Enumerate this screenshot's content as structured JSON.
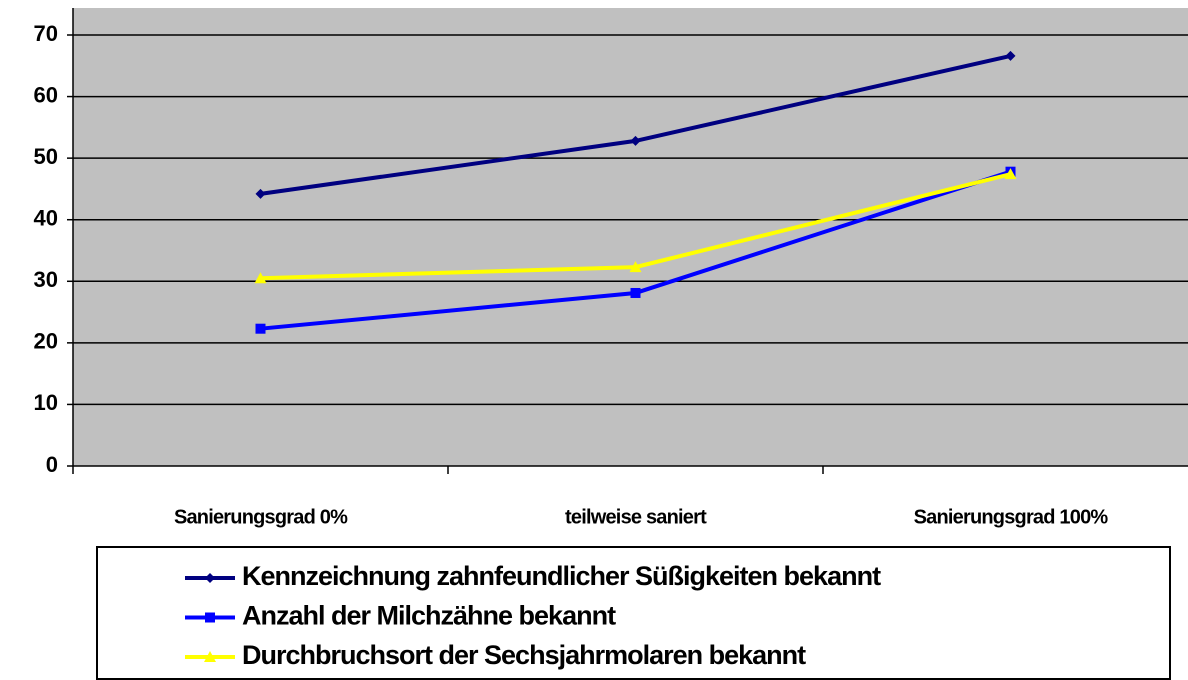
{
  "chart_data": {
    "type": "line",
    "categories": [
      "Sanierungsgrad 0%",
      "teilweise saniert",
      "Sanierungsgrad 100%"
    ],
    "series": [
      {
        "name": "Kennzeichnung zahnfeundlicher Süßigkeiten bekannt",
        "color": "#000080",
        "marker": "diamond",
        "values": [
          44.2,
          52.8,
          66.6
        ]
      },
      {
        "name": "Anzahl der Milchzähne bekannt",
        "color": "#0000ff",
        "marker": "square",
        "values": [
          22.3,
          28.1,
          47.8
        ]
      },
      {
        "name": "Durchbruchsort der Sechsjahrmolaren bekannt",
        "color": "#ffff00",
        "marker": "triangle",
        "values": [
          30.5,
          32.3,
          47.4
        ]
      }
    ],
    "ylim": [
      0,
      70
    ],
    "yticks": [
      0,
      10,
      20,
      30,
      40,
      50,
      60,
      70
    ],
    "grid": true
  }
}
